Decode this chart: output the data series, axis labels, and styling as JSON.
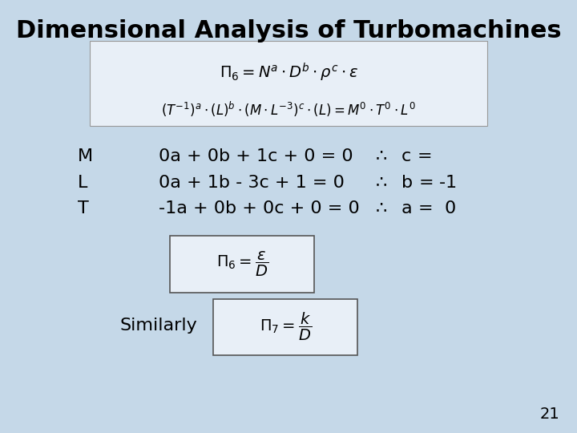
{
  "title": "Dimensional Analysis of Turbomachines",
  "bg_color": "#c5d8e8",
  "text_color": "#000000",
  "title_fontsize": 22,
  "body_fontsize": 16,
  "page_number": "21",
  "row_labels": [
    "M",
    "L",
    "T"
  ],
  "row_equations": [
    "0a + 0b + 1c + 0 = 0",
    "0a + 1b - 3c + 1 = 0",
    "-1a + 0b + 0c + 0 = 0"
  ],
  "row_results": [
    "c =",
    "b = -1",
    "a =  0"
  ],
  "similarly_text": "Similarly",
  "box_facecolor": "#e8eff7",
  "box_edgecolor": "#999999",
  "formula_box_edgecolor": "#555555"
}
